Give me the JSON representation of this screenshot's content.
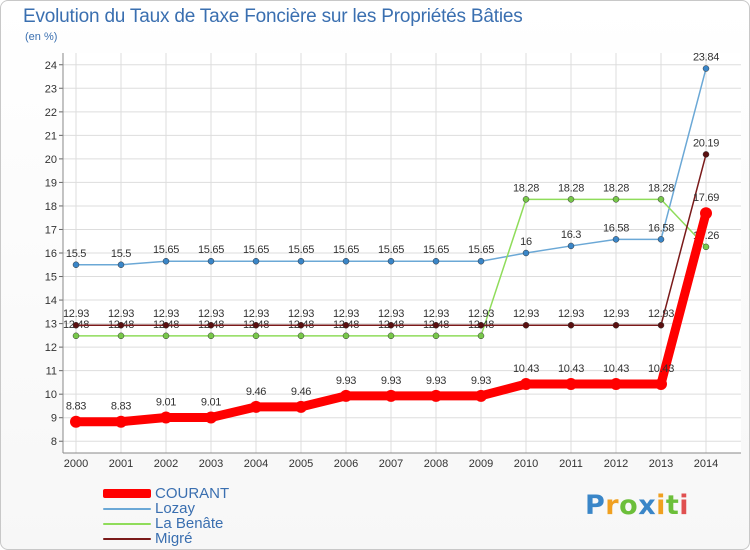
{
  "chart_data": {
    "type": "line",
    "title": "Evolution du Taux de Taxe Foncière sur les Propriétés Bâties",
    "unit_label": "(en %)",
    "xlabel": "",
    "ylabel": "(en %)",
    "ylim": [
      7.5,
      24.5
    ],
    "grid": true,
    "y_ticks": [
      "8",
      "9",
      "10",
      "11",
      "12",
      "13",
      "14",
      "15",
      "16",
      "17",
      "18",
      "19",
      "20",
      "21",
      "22",
      "23",
      "24"
    ],
    "categories": [
      "2000",
      "2001",
      "2002",
      "2003",
      "2004",
      "2005",
      "2006",
      "2007",
      "2008",
      "2009",
      "2010",
      "2011",
      "2012",
      "2013",
      "2014"
    ],
    "series": [
      {
        "name": "Lozay",
        "color": "#6ba8d6",
        "marker": "#3a86c8",
        "values": [
          15.5,
          15.5,
          15.65,
          15.65,
          15.65,
          15.65,
          15.65,
          15.65,
          15.65,
          15.65,
          16,
          16.3,
          16.58,
          16.58,
          23.84
        ],
        "labels": [
          "15.5",
          "15.5",
          "15.65",
          "15.65",
          "15.65",
          "15.65",
          "15.65",
          "15.65",
          "15.65",
          "15.65",
          "16",
          "16.3",
          "16.58",
          "16.58",
          "23.84"
        ]
      },
      {
        "name": "La Benâte",
        "color": "#8fdc5a",
        "marker": "#78c84a",
        "values": [
          12.48,
          12.48,
          12.48,
          12.48,
          12.48,
          12.48,
          12.48,
          12.48,
          12.48,
          12.48,
          18.28,
          18.28,
          18.28,
          18.28,
          16.26
        ],
        "labels": [
          "12.48",
          "12.48",
          "12.48",
          "12.48",
          "12.48",
          "12.48",
          "12.48",
          "12.48",
          "12.48",
          "12.48",
          "18.28",
          "18.28",
          "18.28",
          "18.28",
          "16.26"
        ]
      },
      {
        "name": "Migré",
        "color": "#7a1a1a",
        "marker": "#5a1010",
        "values": [
          12.93,
          12.93,
          12.93,
          12.93,
          12.93,
          12.93,
          12.93,
          12.93,
          12.93,
          12.93,
          12.93,
          12.93,
          12.93,
          12.93,
          20.19
        ],
        "labels": [
          "12.93",
          "12.93",
          "12.93",
          "12.93",
          "12.93",
          "12.93",
          "12.93",
          "12.93",
          "12.93",
          "12.93",
          "12.93",
          "12.93",
          "12.93",
          "12.93",
          "20.19"
        ]
      },
      {
        "name": "COURANT",
        "color": "#ff0000",
        "marker": "#ff0000",
        "values": [
          8.83,
          8.83,
          9.01,
          9.01,
          9.46,
          9.46,
          9.93,
          9.93,
          9.93,
          9.93,
          10.43,
          10.43,
          10.43,
          10.43,
          17.69
        ],
        "labels": [
          "8.83",
          "8.83",
          "9.01",
          "9.01",
          "9.46",
          "9.46",
          "9.93",
          "9.93",
          "9.93",
          "9.93",
          "10.43",
          "10.43",
          "10.43",
          "10.43",
          "17.69"
        ]
      }
    ],
    "legend": [
      {
        "label": "COURANT",
        "color": "#ff0000",
        "thickness": 9
      },
      {
        "label": "Lozay",
        "color": "#6ba8d6",
        "thickness": 2
      },
      {
        "label": "La Benâte",
        "color": "#8fdc5a",
        "thickness": 2
      },
      {
        "label": "Migré",
        "color": "#7a1a1a",
        "thickness": 2
      }
    ]
  },
  "logo": {
    "letters": [
      "P",
      "r",
      "o",
      "x",
      "i",
      "t",
      "i"
    ],
    "colors": [
      "#3a86c8",
      "#f0a020",
      "#6cbf3a",
      "#3a86c8",
      "#f0a020",
      "#6cbf3a",
      "#e05050"
    ]
  }
}
